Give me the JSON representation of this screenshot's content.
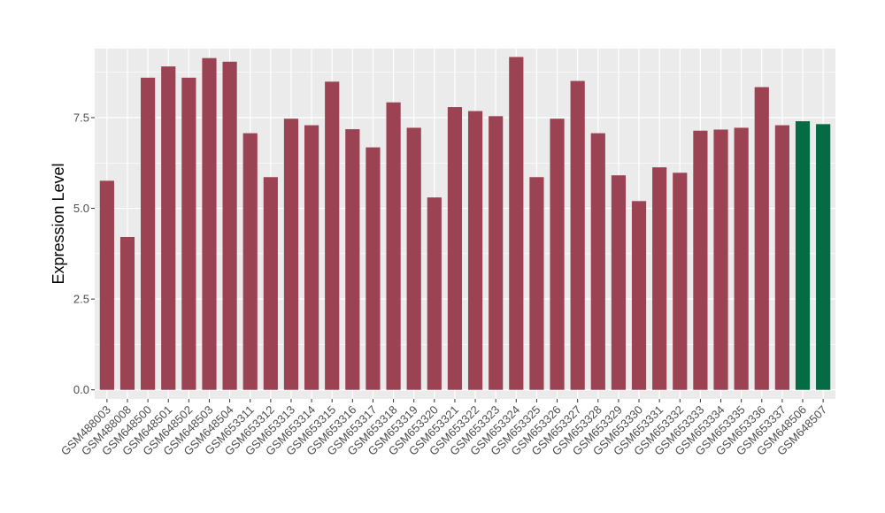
{
  "chart_data": {
    "type": "bar",
    "title": "",
    "xlabel": "",
    "ylabel": "Expression Level",
    "ylim": [
      -0.25,
      9.4
    ],
    "y_ticks": [
      0.0,
      2.5,
      5.0,
      7.5
    ],
    "y_tick_labels": [
      "0.0",
      "2.5",
      "5.0",
      "7.5"
    ],
    "grid": true,
    "legend": "none",
    "colors": {
      "default": "#9b4352",
      "highlight": "#056b45",
      "panel": "#ebebeb",
      "grid": "#ffffff"
    },
    "categories": [
      "GSM488003",
      "GSM488008",
      "GSM648500",
      "GSM648501",
      "GSM648502",
      "GSM648503",
      "GSM648504",
      "GSM653311",
      "GSM653312",
      "GSM653313",
      "GSM653314",
      "GSM653315",
      "GSM653316",
      "GSM653317",
      "GSM653318",
      "GSM653319",
      "GSM653320",
      "GSM653321",
      "GSM653322",
      "GSM653323",
      "GSM653324",
      "GSM653325",
      "GSM653326",
      "GSM653327",
      "GSM653328",
      "GSM653329",
      "GSM653330",
      "GSM653331",
      "GSM653332",
      "GSM653333",
      "GSM653334",
      "GSM653335",
      "GSM653336",
      "GSM653337",
      "GSM648506",
      "GSM648507"
    ],
    "values": [
      5.76,
      4.21,
      8.6,
      8.91,
      8.6,
      9.14,
      9.04,
      7.07,
      5.86,
      7.47,
      7.29,
      8.49,
      7.18,
      6.68,
      7.92,
      7.22,
      5.3,
      7.79,
      7.68,
      7.54,
      9.17,
      5.86,
      7.47,
      8.51,
      7.07,
      5.91,
      5.2,
      6.13,
      5.98,
      7.14,
      7.17,
      7.22,
      8.34,
      7.29,
      7.4,
      7.32
    ],
    "highlight": [
      false,
      false,
      false,
      false,
      false,
      false,
      false,
      false,
      false,
      false,
      false,
      false,
      false,
      false,
      false,
      false,
      false,
      false,
      false,
      false,
      false,
      false,
      false,
      false,
      false,
      false,
      false,
      false,
      false,
      false,
      false,
      false,
      false,
      false,
      true,
      true
    ]
  }
}
